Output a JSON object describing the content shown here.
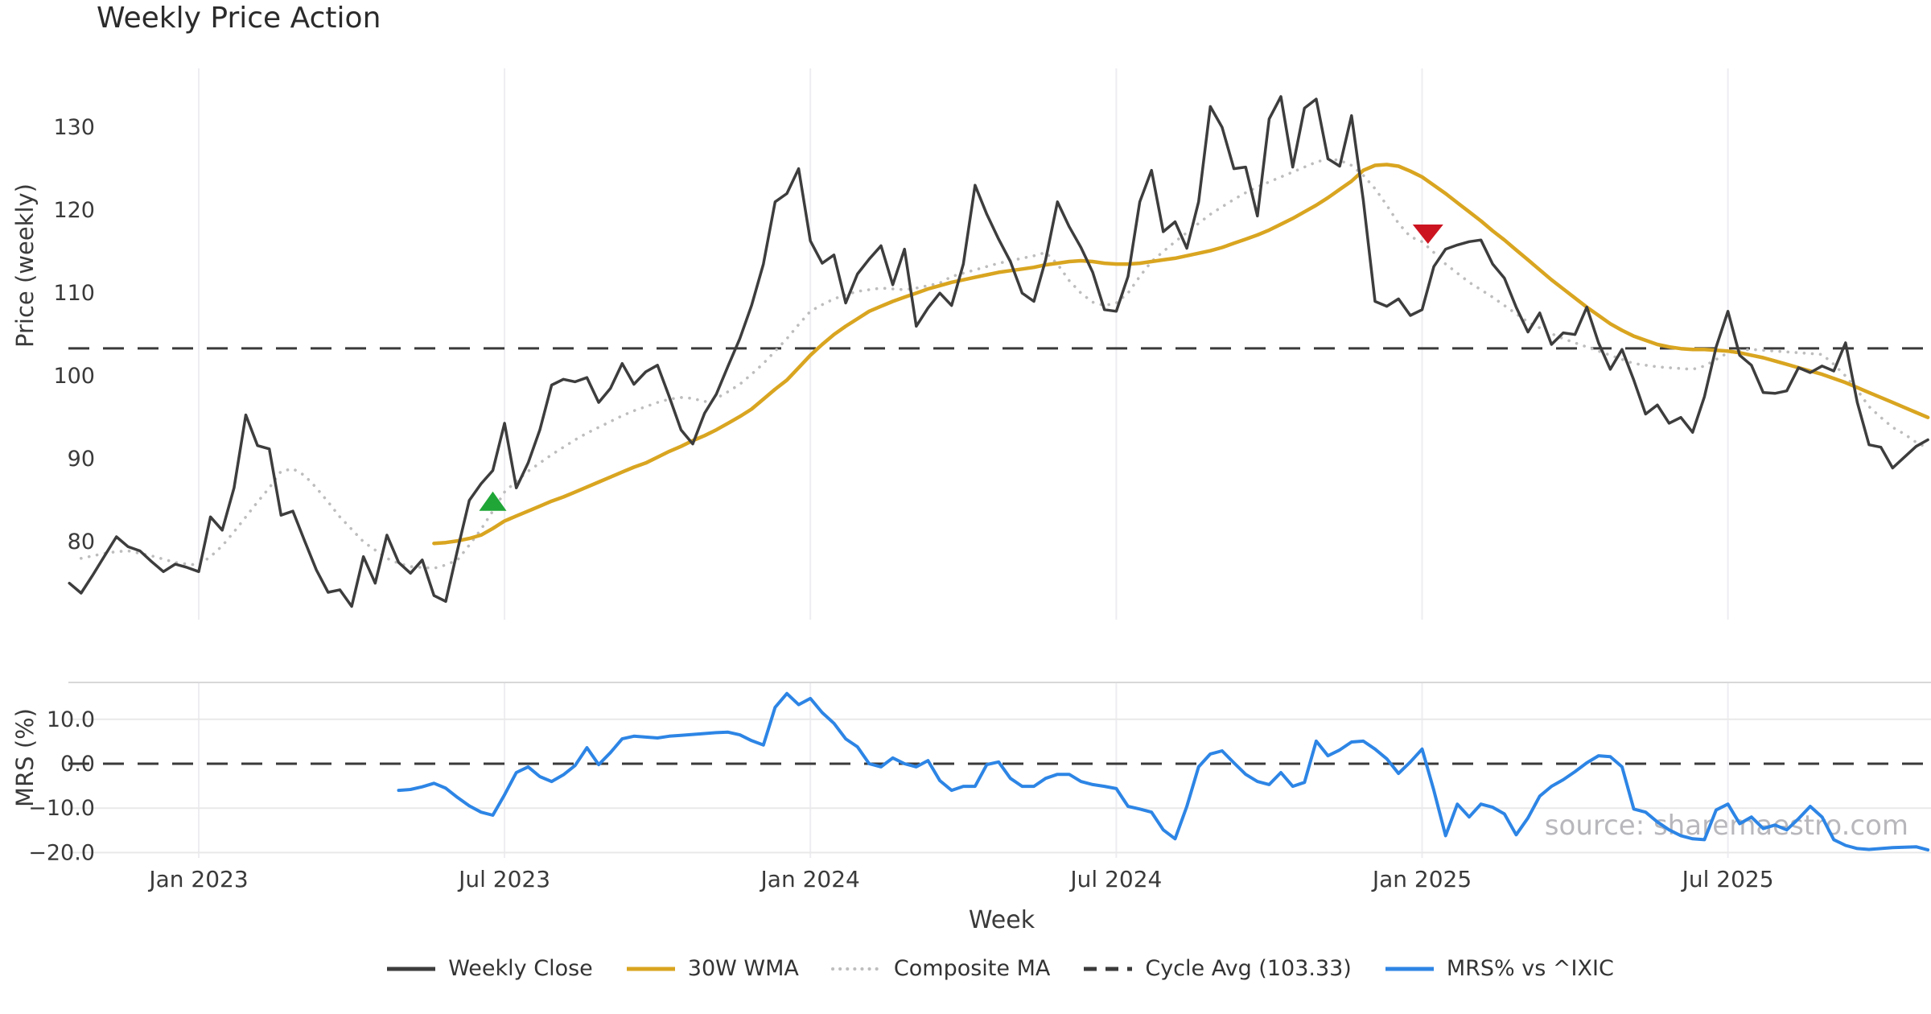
{
  "title": "Weekly Price Action",
  "watermark": "source: sharemaestro.com",
  "x_axis_title": "Week",
  "colors": {
    "weekly_close": "#3d3d3d",
    "wma": "#d9a520",
    "composite": "#bdbdbd",
    "cycle_avg": "#3a3a3a",
    "mrs": "#2d85e5",
    "buy_marker": "#1fa637",
    "sell_marker": "#cc1420",
    "gridline": "#ededf2",
    "gridline_h": "#e9e9e9",
    "panel_border": "#d8d8d8",
    "tick_text": "#3a3a3a"
  },
  "legend": {
    "items": [
      {
        "label": "Weekly Close",
        "style": "solid",
        "color": "#3d3d3d"
      },
      {
        "label": "30W WMA",
        "style": "solid",
        "color": "#d9a520"
      },
      {
        "label": "Composite MA",
        "style": "dotted",
        "color": "#bdbdbd"
      },
      {
        "label": "Cycle Avg (103.33)",
        "style": "dashed",
        "color": "#3a3a3a"
      },
      {
        "label": "MRS% vs ^IXIC",
        "style": "solid",
        "color": "#2d85e5"
      }
    ]
  },
  "chart_data": {
    "type": "line",
    "title": "Weekly Price Action",
    "xlabel": "Week",
    "x_unit": "week",
    "xlim_weeks": [
      -11,
      147.5
    ],
    "x_ticks": [
      {
        "week": 0,
        "label": "Jan 2023"
      },
      {
        "week": 26,
        "label": "Jul 2023"
      },
      {
        "week": 52,
        "label": "Jan 2024"
      },
      {
        "week": 78,
        "label": "Jul 2024"
      },
      {
        "week": 104,
        "label": "Jan 2025"
      },
      {
        "week": 130,
        "label": "Jul 2025"
      }
    ],
    "panels": [
      {
        "id": "price",
        "ylabel": "Price (weekly)",
        "ylim": [
          70.6,
          137.1
        ],
        "grid": "vertical-only",
        "yticks": [
          {
            "v": 130,
            "label": "130"
          },
          {
            "v": 120,
            "label": "120"
          },
          {
            "v": 110,
            "label": "110"
          },
          {
            "v": 100,
            "label": "100"
          },
          {
            "v": 90,
            "label": "90"
          },
          {
            "v": 80,
            "label": "80"
          }
        ],
        "hline": {
          "name": "Cycle Avg (103.33)",
          "value": 103.33,
          "style": "dashed",
          "color": "#3a3a3a"
        },
        "markers": [
          {
            "shape": "triangle-up",
            "name": "buy-signal",
            "week": 25,
            "value": 84.8,
            "color": "#1fa637"
          },
          {
            "shape": "triangle-down",
            "name": "sell-signal",
            "week": 104.5,
            "value": 117.2,
            "color": "#cc1420"
          }
        ],
        "series": [
          {
            "name": "Weekly Close",
            "color": "#3d3d3d",
            "style": "solid",
            "width": 3.5,
            "start_week": -11,
            "values": [
              75,
              73.8,
              76,
              78.3,
              80.6,
              79.4,
              78.9,
              77.6,
              76.4,
              77.3,
              76.9,
              76.4,
              83,
              81.4,
              86.5,
              95.3,
              91.6,
              91.2,
              83.2,
              83.7,
              80.1,
              76.6,
              73.9,
              74.2,
              72.2,
              78.2,
              75,
              80.8,
              77.5,
              76.2,
              77.8,
              73.5,
              72.8,
              79,
              85,
              87,
              88.6,
              94.3,
              86.5,
              89.5,
              93.5,
              98.9,
              99.6,
              99.3,
              99.8,
              96.8,
              98.5,
              101.5,
              99,
              100.5,
              101.3,
              97.5,
              93.5,
              91.8,
              95.5,
              97.8,
              101.2,
              104.5,
              108.5,
              113.5,
              121,
              122,
              125,
              116.3,
              113.6,
              114.6,
              108.8,
              112.3,
              114.1,
              115.7,
              111,
              115.3,
              106,
              108.2,
              110,
              108.5,
              113.5,
              123,
              119.5,
              116.5,
              113.8,
              110,
              109,
              114,
              121,
              118,
              115.5,
              112.5,
              108,
              107.8,
              112,
              121,
              124.8,
              117.4,
              118.6,
              115.4,
              121,
              132.5,
              130,
              125,
              125.2,
              119.3,
              131,
              133.7,
              125.2,
              132.3,
              133.4,
              126.2,
              125.3,
              131.4,
              121.2,
              109,
              108.4,
              109.3,
              107.3,
              108,
              113.2,
              115.3,
              115.8,
              116.2,
              116.4,
              113.5,
              111.8,
              108.3,
              105.3,
              107.6,
              103.8,
              105.2,
              105,
              108.3,
              104,
              100.8,
              103.2,
              99.5,
              95.4,
              96.5,
              94.3,
              95,
              93.2,
              97.5,
              103.5,
              107.8,
              102.5,
              101.3,
              98,
              97.9,
              98.2,
              101,
              100.4,
              101.2,
              100.6,
              104,
              96.8,
              91.7,
              91.4,
              88.9,
              90.2,
              91.5,
              92.3
            ]
          },
          {
            "name": "30W WMA",
            "color": "#d9a520",
            "style": "solid",
            "width": 4.5,
            "start_week": 20,
            "values": [
              79.8,
              79.9,
              80.1,
              80.4,
              80.8,
              81.6,
              82.5,
              83.1,
              83.7,
              84.3,
              84.9,
              85.4,
              86,
              86.6,
              87.2,
              87.8,
              88.4,
              89,
              89.5,
              90.2,
              90.9,
              91.5,
              92.2,
              92.8,
              93.5,
              94.3,
              95.1,
              96,
              97.2,
              98.4,
              99.5,
              101,
              102.5,
              103.8,
              105,
              106,
              106.9,
              107.8,
              108.4,
              109,
              109.5,
              110,
              110.5,
              110.9,
              111.3,
              111.6,
              111.9,
              112.2,
              112.5,
              112.7,
              112.9,
              113.1,
              113.4,
              113.6,
              113.8,
              113.9,
              113.8,
              113.6,
              113.5,
              113.5,
              113.6,
              113.8,
              114,
              114.2,
              114.5,
              114.8,
              115.1,
              115.5,
              116,
              116.5,
              117,
              117.6,
              118.3,
              119,
              119.8,
              120.6,
              121.5,
              122.5,
              123.5,
              124.8,
              125.4,
              125.5,
              125.3,
              124.7,
              124,
              123,
              122,
              120.9,
              119.8,
              118.7,
              117.5,
              116.4,
              115.2,
              114,
              112.8,
              111.6,
              110.5,
              109.4,
              108.3,
              107.3,
              106.3,
              105.5,
              104.8,
              104.3,
              103.8,
              103.5,
              103.3,
              103.2,
              103.2,
              103.1,
              103,
              102.8,
              102.5,
              102.2,
              101.8,
              101.4,
              101,
              100.6,
              100.2,
              99.7,
              99.2,
              98.6,
              98,
              97.4,
              96.8,
              96.2,
              95.6,
              95
            ]
          },
          {
            "name": "Composite MA",
            "color": "#bdbdbd",
            "style": "dotted",
            "width": 3.6,
            "start_week": -10,
            "values": [
              78,
              78.3,
              78.6,
              78.8,
              78.9,
              78.6,
              78.3,
              77.9,
              77.5,
              77.3,
              77.2,
              78.2,
              79.5,
              81.2,
              83,
              84.8,
              86.5,
              88.5,
              88.8,
              88,
              86.5,
              84.8,
              83,
              81.5,
              80,
              79,
              78,
              77.4,
              77,
              76.9,
              76.8,
              77.2,
              77.8,
              79.6,
              81.5,
              83.7,
              86,
              87.3,
              88.5,
              89.5,
              90.5,
              91.4,
              92.3,
              93.1,
              93.8,
              94.5,
              95.2,
              95.8,
              96.3,
              96.8,
              97.2,
              97.4,
              97.3,
              96.9,
              97.3,
              98.1,
              99,
              100.2,
              101.5,
              103,
              104.5,
              106.2,
              107.8,
              108.6,
              109.3,
              109.8,
              110.2,
              110.4,
              110.6,
              110.5,
              110.4,
              110.6,
              110.9,
              111.2,
              112,
              112.4,
              112.8,
              113.2,
              113.6,
              113.9,
              114.2,
              114.5,
              114.9,
              113.5,
              111.5,
              110,
              108.9,
              108.5,
              108.8,
              110,
              112,
              113.8,
              115,
              116.2,
              117.3,
              118.4,
              119.5,
              120.4,
              121.3,
              122.1,
              122.8,
              123.4,
              124,
              124.6,
              125.2,
              125.8,
              126.2,
              126,
              125.4,
              124.2,
              122.6,
              120.6,
              118.4,
              116.8,
              116.2,
              114.9,
              113.5,
              112.4,
              111.3,
              110.4,
              109.5,
              108.5,
              107.5,
              106.5,
              105.8,
              105.1,
              104.5,
              104,
              103.5,
              103,
              102.5,
              102,
              101.5,
              101.3,
              101.1,
              101,
              100.9,
              100.8,
              101.2,
              102,
              102.8,
              103.1,
              103.2,
              103.1,
              103,
              102.9,
              102.8,
              102.7,
              102.6,
              101.4,
              100,
              98.3,
              96.3,
              95,
              93.8,
              93,
              92,
              91.3
            ]
          }
        ]
      },
      {
        "id": "mrs",
        "ylabel": "MRS (%)",
        "ylim": [
          -21.2,
          18.3
        ],
        "grid": "both",
        "gridlines_h": [
          10,
          -10,
          -20
        ],
        "yticks": [
          {
            "v": 10,
            "label": "10.0"
          },
          {
            "v": 0,
            "label": "0.0"
          },
          {
            "v": -10,
            "label": "−10.0"
          },
          {
            "v": -20,
            "label": "−20.0"
          }
        ],
        "hline": {
          "name": "zero-line",
          "value": 0,
          "style": "dashed",
          "color": "#3a3a3a"
        },
        "markers": [],
        "series": [
          {
            "name": "MRS% vs ^IXIC",
            "color": "#2d85e5",
            "style": "solid",
            "width": 4,
            "start_week": 17,
            "values": [
              -6,
              -5.8,
              -5.2,
              -4.4,
              -5.5,
              -7.6,
              -9.5,
              -10.9,
              -11.6,
              -7,
              -2,
              -0.7,
              -2.9,
              -4,
              -2.5,
              -0.4,
              3.6,
              -0.2,
              2.5,
              5.6,
              6.2,
              6,
              5.8,
              6.2,
              6.4,
              6.6,
              6.8,
              7,
              7.1,
              6.5,
              5.2,
              4.2,
              12.7,
              15.8,
              13.3,
              14.7,
              11.5,
              9.1,
              5.6,
              3.8,
              0,
              -0.7,
              1.3,
              0,
              -0.7,
              0.7,
              -3.8,
              -6,
              -5.1,
              -5.1,
              -0.2,
              0.4,
              -3.3,
              -5.1,
              -5.1,
              -3.3,
              -2.4,
              -2.4,
              -4,
              -4.7,
              -5.1,
              -5.6,
              -9.6,
              -10.2,
              -10.9,
              -14.9,
              -16.9,
              -9.6,
              -0.7,
              2.2,
              2.9,
              0.2,
              -2.4,
              -4,
              -4.7,
              -2,
              -5.1,
              -4.2,
              5.1,
              1.8,
              3.1,
              4.9,
              5.1,
              3.3,
              1.1,
              -2.2,
              0.4,
              3.3,
              -6,
              -16.2,
              -9.1,
              -12,
              -9.1,
              -9.8,
              -11.3,
              -16,
              -12.2,
              -7.3,
              -5.1,
              -3.6,
              -1.8,
              0.2,
              1.8,
              1.6,
              -0.7,
              -10.2,
              -10.9,
              -13.1,
              -14.9,
              -16.2,
              -16.9,
              -17.1,
              -10.4,
              -9.1,
              -13.5,
              -12,
              -14.6,
              -13.8,
              -14.9,
              -12.4,
              -9.6,
              -12,
              -17.1,
              -18.4,
              -19.1,
              -19.3,
              -19.1,
              -18.9,
              -18.8,
              -18.7,
              -19.4
            ]
          }
        ]
      }
    ]
  }
}
